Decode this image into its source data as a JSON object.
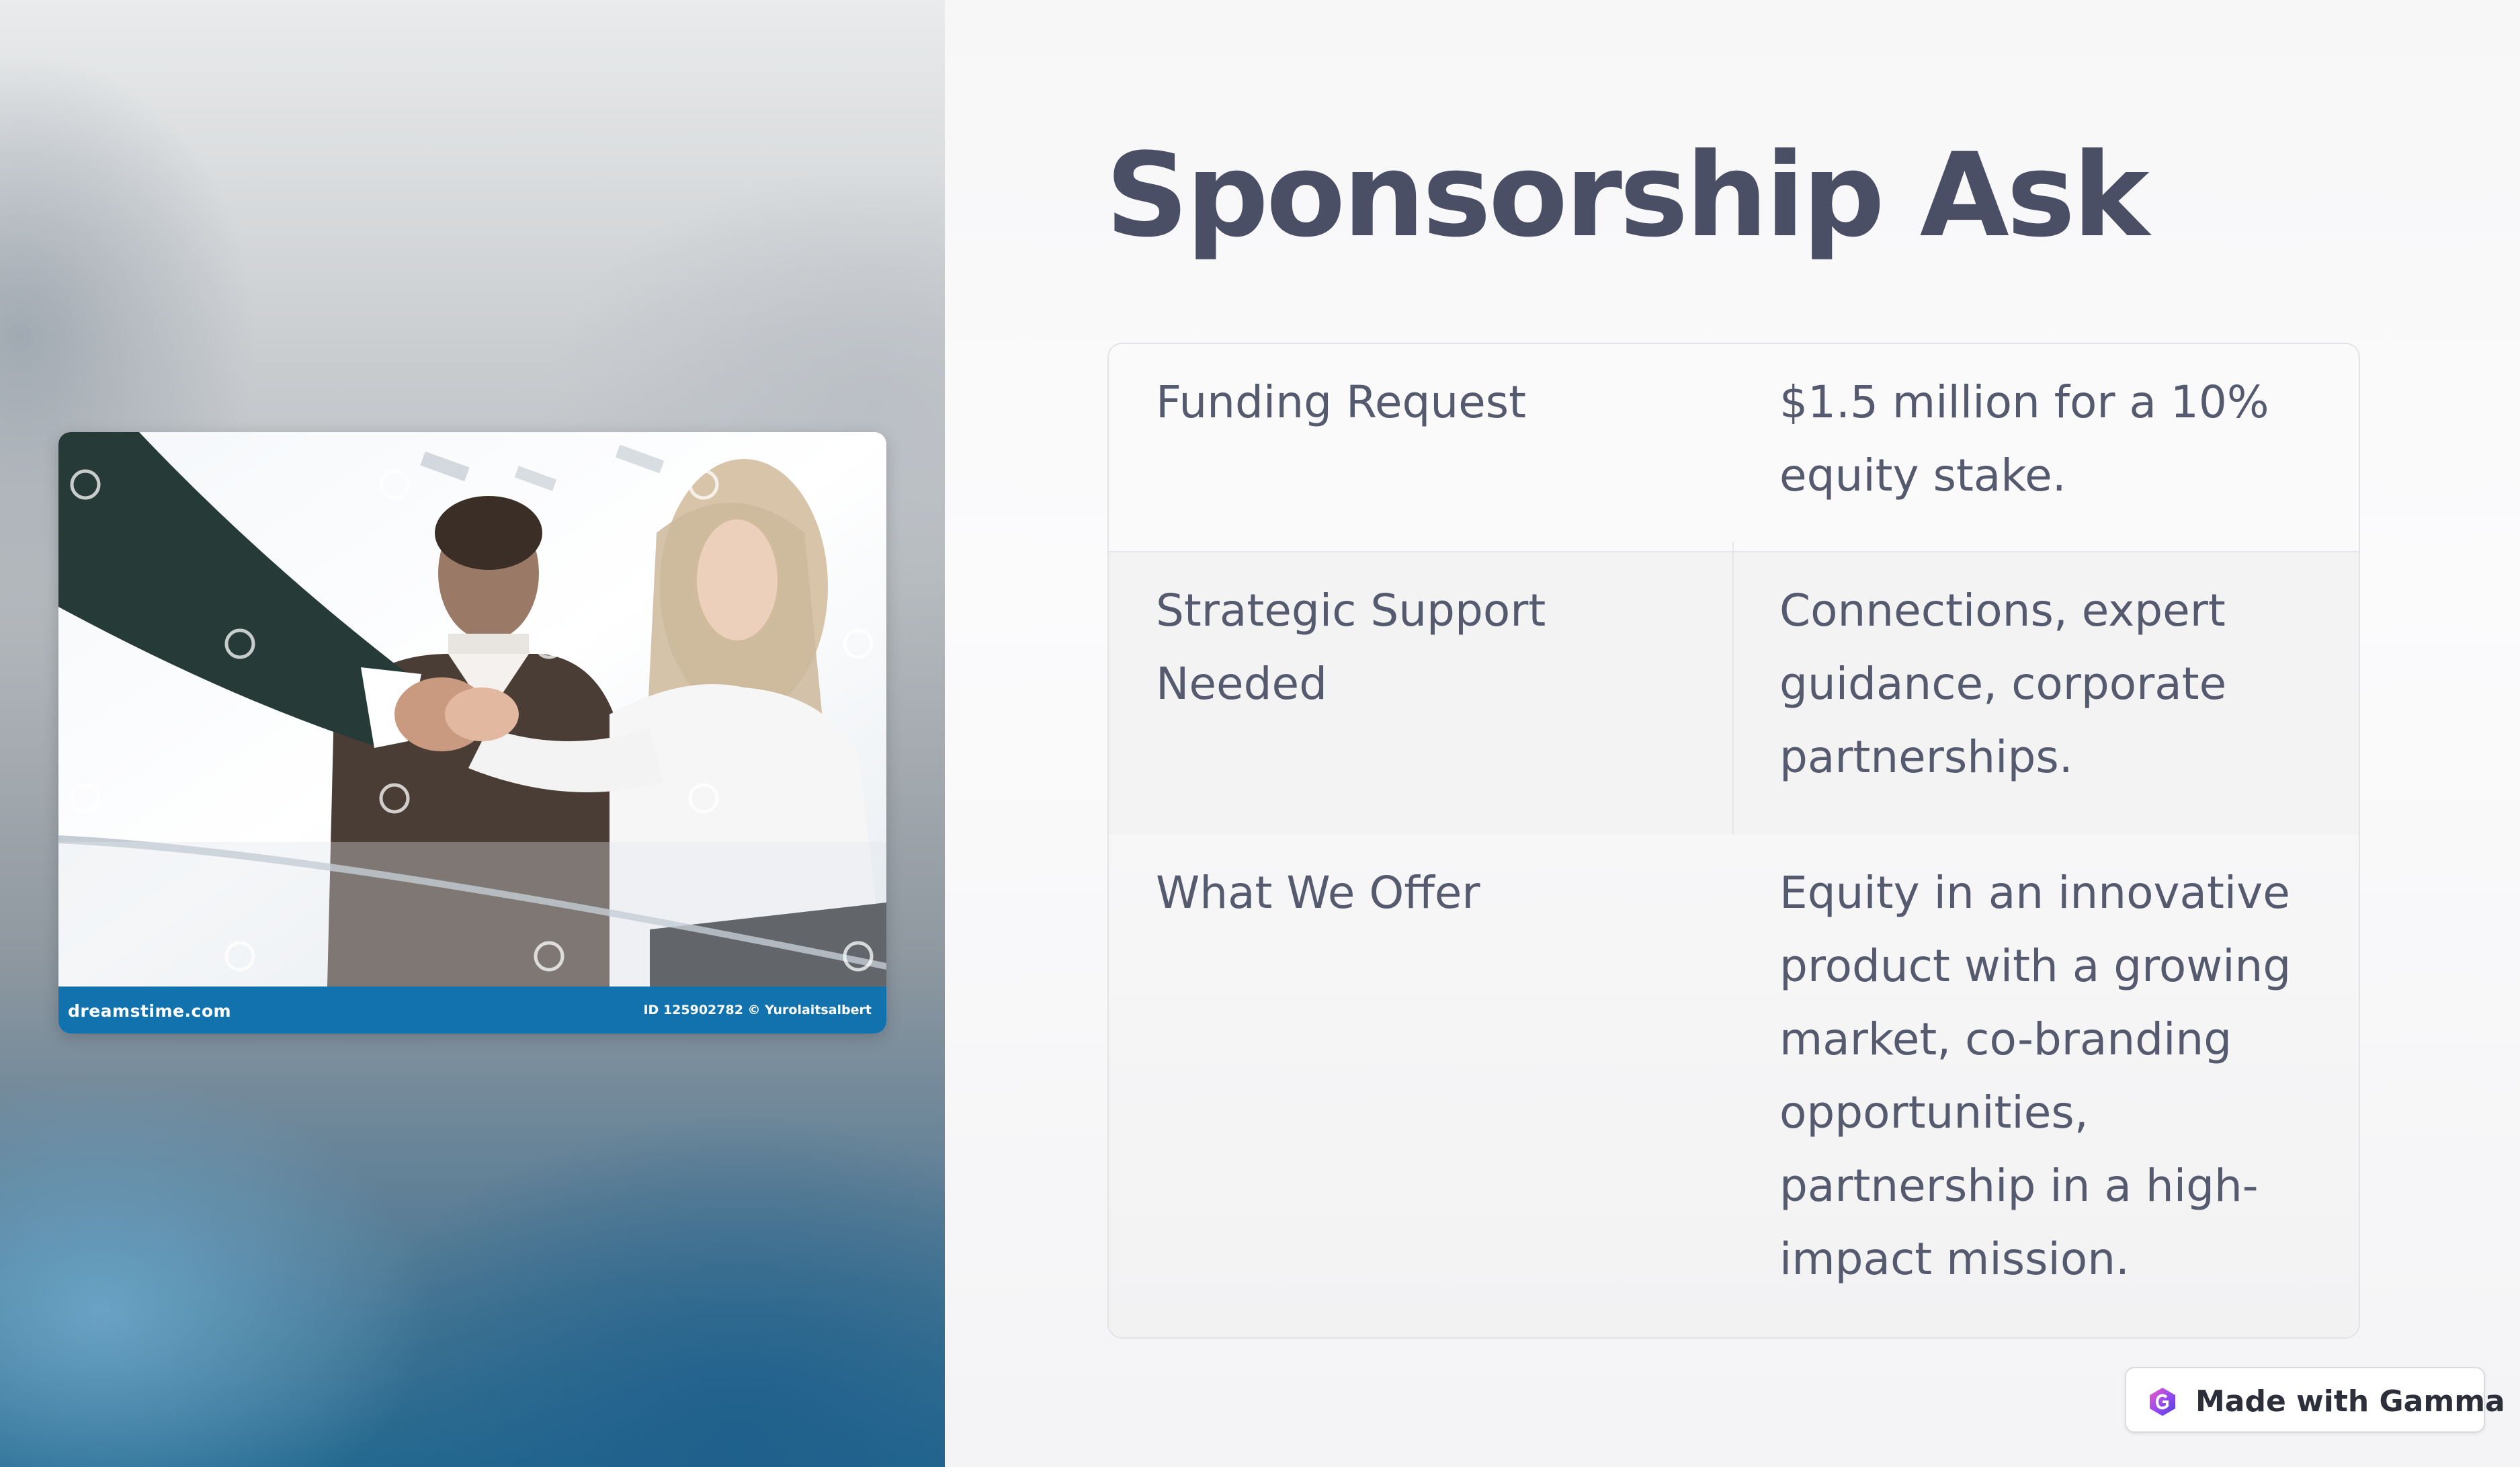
{
  "slide": {
    "title": "Sponsorship Ask"
  },
  "image": {
    "brand": "dreamstime.com",
    "credit": "ID 125902782 © Yurolaitsalbert"
  },
  "table": {
    "rows": [
      {
        "label": "Funding Request",
        "value": "$1.5 million for a 10% equity stake."
      },
      {
        "label": "Strategic Support Needed",
        "value": "Connections, expert guidance, corporate partnerships."
      },
      {
        "label": "What We Offer",
        "value": "Equity in an innovative product with a growing market, co-branding opportunities, partnership in a high-impact mission."
      }
    ]
  },
  "badge": {
    "label": "Made with Gamma",
    "icon": "gamma-logo-icon"
  },
  "colors": {
    "title": "#4a4f66",
    "text": "#555a6e",
    "photo_bar": "#1172ad",
    "panel_bottom": "#24698f"
  }
}
